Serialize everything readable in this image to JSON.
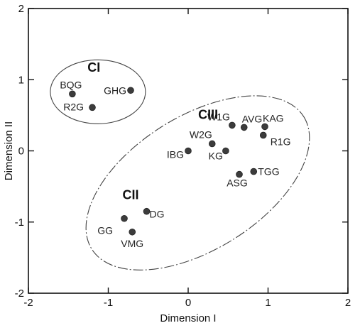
{
  "chart_data": {
    "type": "scatter",
    "xlabel": "Dimension I",
    "ylabel": "Dimension II",
    "xlim": [
      -2,
      2
    ],
    "ylim": [
      -2,
      2
    ],
    "x_ticks": [
      "-2",
      "-1",
      "0",
      "1",
      "2"
    ],
    "y_ticks": [
      "-2",
      "-1",
      "0",
      "1",
      "2"
    ],
    "grid": false,
    "points": [
      {
        "label": "BQG",
        "x": -1.45,
        "y": 0.8
      },
      {
        "label": "R2G",
        "x": -1.2,
        "y": 0.61
      },
      {
        "label": "GHG",
        "x": -0.72,
        "y": 0.85
      },
      {
        "label": "W1G",
        "x": 0.55,
        "y": 0.36
      },
      {
        "label": "AVG",
        "x": 0.7,
        "y": 0.33
      },
      {
        "label": "KAG",
        "x": 0.96,
        "y": 0.34
      },
      {
        "label": "R1G",
        "x": 0.94,
        "y": 0.22
      },
      {
        "label": "W2G",
        "x": 0.3,
        "y": 0.1
      },
      {
        "label": "IBG",
        "x": 0.0,
        "y": 0.0
      },
      {
        "label": "KG",
        "x": 0.47,
        "y": 0.0
      },
      {
        "label": "ASG",
        "x": 0.64,
        "y": -0.33
      },
      {
        "label": "TGG",
        "x": 0.82,
        "y": -0.29
      },
      {
        "label": "DG",
        "x": -0.52,
        "y": -0.85
      },
      {
        "label": "GG",
        "x": -0.8,
        "y": -0.95
      },
      {
        "label": "VMG",
        "x": -0.7,
        "y": -1.14
      }
    ],
    "clusters": [
      {
        "label": "CI",
        "x": -1.18,
        "y": 1.17
      },
      {
        "label": "CII",
        "x": -0.72,
        "y": -0.62
      },
      {
        "label": "CIII",
        "x": 0.25,
        "y": 0.51
      }
    ]
  }
}
